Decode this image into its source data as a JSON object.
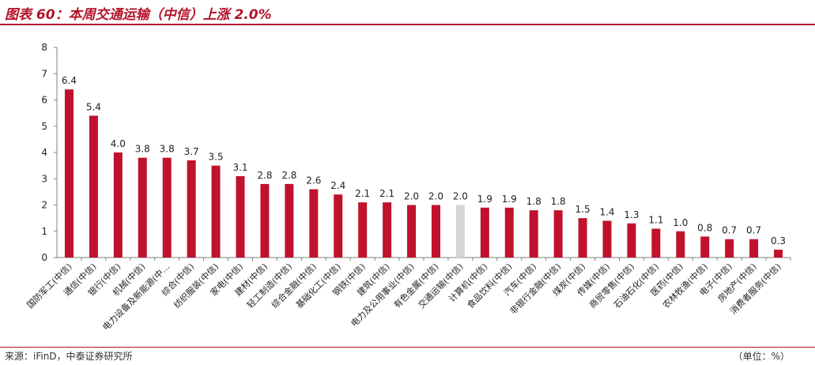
{
  "header": {
    "title": "图表 60：本周交通运输（中信）上涨 2.0%"
  },
  "footer": {
    "source": "来源：iFinD，中泰证券研究所",
    "unit": "（单位：%）"
  },
  "colors": {
    "bar": "#c0122c",
    "highlight": "#d4d4d4",
    "accent": "#b3122a"
  },
  "chart_data": {
    "type": "bar",
    "title": "",
    "xlabel": "",
    "ylabel": "",
    "ylim": [
      0,
      8
    ],
    "yticks": [
      0,
      1,
      2,
      3,
      4,
      5,
      6,
      7,
      8
    ],
    "grid": false,
    "legend": "none",
    "highlight_category": "交通运输(中信)",
    "categories": [
      "国防军工(中信)",
      "通信(中信)",
      "银行(中信)",
      "机械(中信)",
      "电力设备及新能源(中…",
      "综合(中信)",
      "纺织服装(中信)",
      "家电(中信)",
      "建材(中信)",
      "轻工制造(中信)",
      "综合金融(中信)",
      "基础化工(中信)",
      "钢铁(中信)",
      "建筑(中信)",
      "电力及公用事业(中信)",
      "有色金属(中信)",
      "交通运输(中信)",
      "计算机(中信)",
      "食品饮料(中信)",
      "汽车(中信)",
      "非银行金融(中信)",
      "煤炭(中信)",
      "传媒(中信)",
      "商贸零售(中信)",
      "石油石化(中信)",
      "医药(中信)",
      "农林牧渔(中信)",
      "电子(中信)",
      "房地产(中信)",
      "消费者服务(中信)"
    ],
    "values": [
      6.4,
      5.4,
      4.0,
      3.8,
      3.8,
      3.7,
      3.5,
      3.1,
      2.8,
      2.8,
      2.6,
      2.4,
      2.1,
      2.1,
      2.0,
      2.0,
      2.0,
      1.9,
      1.9,
      1.8,
      1.8,
      1.5,
      1.4,
      1.3,
      1.1,
      1.0,
      0.8,
      0.7,
      0.7,
      0.3
    ],
    "value_labels": [
      "6.4",
      "5.4",
      "4.0",
      "3.8",
      "3.8",
      "3.7",
      "3.5",
      "3.1",
      "2.8",
      "2.8",
      "2.6",
      "2.4",
      "2.1",
      "2.1",
      "2.0",
      "2.0",
      "2.0",
      "1.9",
      "1.9",
      "1.8",
      "1.8",
      "1.5",
      "1.4",
      "1.3",
      "1.1",
      "1.0",
      "0.8",
      "0.7",
      "0.7",
      "0.3"
    ]
  }
}
